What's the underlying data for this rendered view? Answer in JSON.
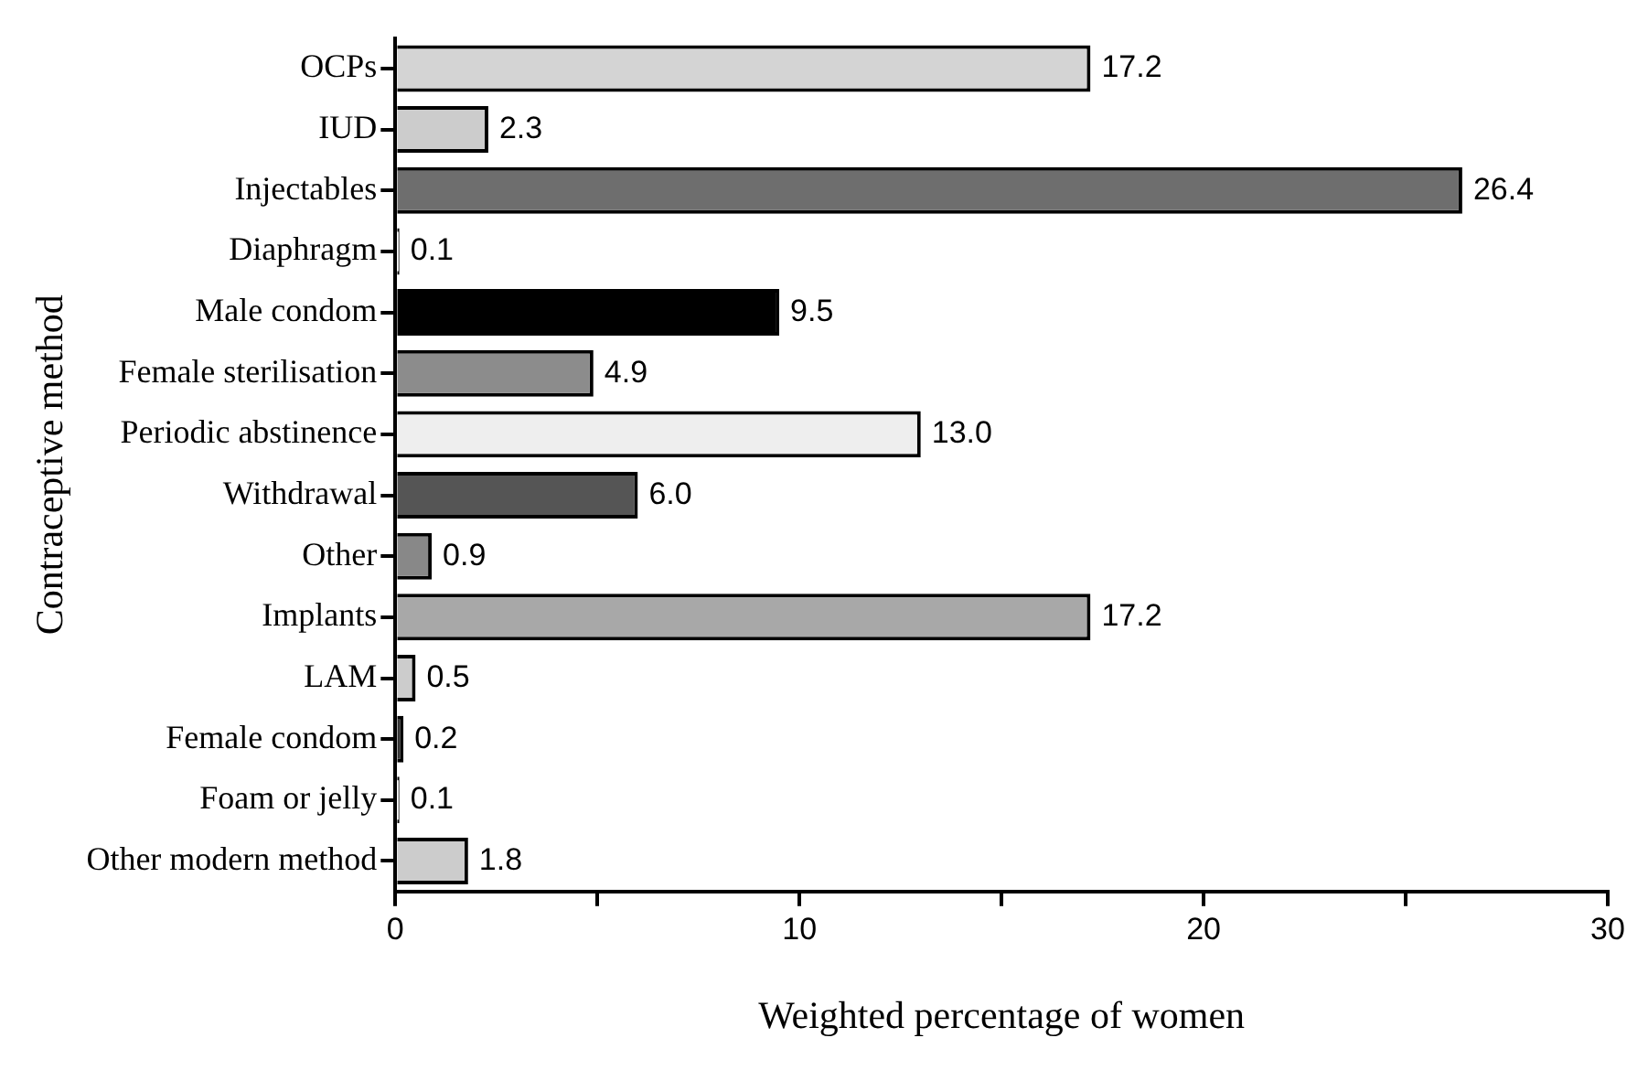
{
  "chart_data": {
    "type": "bar",
    "orientation": "horizontal",
    "xlabel": "Weighted percentage of women",
    "ylabel": "Contraceptive method",
    "categories": [
      "OCPs",
      "IUD",
      "Injectables",
      "Diaphragm",
      "Male condom",
      "Female sterilisation",
      "Periodic abstinence",
      "Withdrawal",
      "Other",
      "Implants",
      "LAM",
      "Female condom",
      "Foam or jelly",
      "Other modern method"
    ],
    "values": [
      17.2,
      2.3,
      26.4,
      0.1,
      9.5,
      4.9,
      13.0,
      6.0,
      0.9,
      17.2,
      0.5,
      0.2,
      0.1,
      1.8
    ],
    "colors": [
      "#d4d4d4",
      "#cccccc",
      "#6e6e6e",
      "#ffffff",
      "#000000",
      "#8c8c8c",
      "#eeeeee",
      "#555555",
      "#888888",
      "#a8a8a8",
      "#cccccc",
      "#333333",
      "#ffffff",
      "#cccccc"
    ],
    "value_labels": [
      "17.2",
      "2.3",
      "26.4",
      "0.1",
      "9.5",
      "4.9",
      "13.0",
      "6.0",
      "0.9",
      "17.2",
      "0.5",
      "0.2",
      "0.1",
      "1.8"
    ],
    "xlim": [
      0,
      30
    ],
    "xticks": [
      0,
      {
        "value": 5,
        "label": null
      },
      10,
      {
        "value": 15,
        "label": null
      },
      20,
      {
        "value": 25,
        "label": null
      },
      30
    ],
    "grid": false,
    "legend": false
  }
}
